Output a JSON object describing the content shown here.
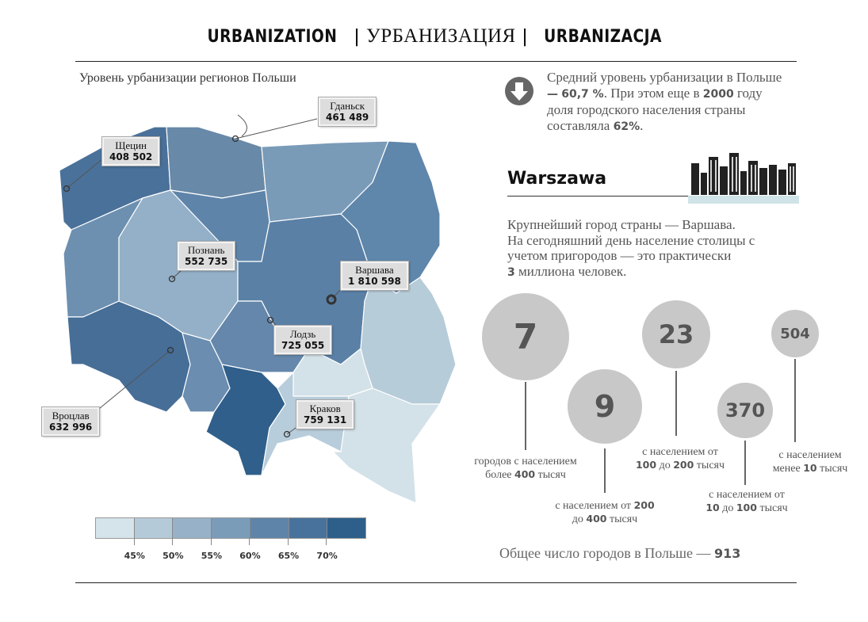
{
  "header": {
    "title_en": "URBANIZATION",
    "sep": "|",
    "title_ru": "УРБАНИЗАЦИЯ",
    "title_pl": "URBANIZACJA"
  },
  "map": {
    "subtitle": "Уровень урбанизации регионов Польши",
    "cities": [
      {
        "name": "Гданьск",
        "population": "461 489"
      },
      {
        "name": "Щецин",
        "population": "408 502"
      },
      {
        "name": "Познань",
        "population": "552 735"
      },
      {
        "name": "Варшава",
        "population": "1 810 598"
      },
      {
        "name": "Лодзь",
        "population": "725 055"
      },
      {
        "name": "Краков",
        "population": "759 131"
      },
      {
        "name": "Вроцлав",
        "population": "632 996"
      }
    ],
    "legend": {
      "colors": [
        "#d5e3ea",
        "#b5cad9",
        "#97b2c8",
        "#7b9cb9",
        "#5f84a9",
        "#48729b",
        "#2d5f8a"
      ],
      "ticks": [
        "45%",
        "50%",
        "55%",
        "60%",
        "65%",
        "70%"
      ]
    }
  },
  "info": {
    "icon": "down-arrow-circle-icon",
    "text_1": "Средний уровень урбанизации в Польше",
    "dash": "—",
    "value": "60,7 %",
    "text_2": ". При этом еще в",
    "year": "2000",
    "text_3": "году доля городского населения страны составляла",
    "share": "62%",
    "text_4": "."
  },
  "warsaw": {
    "heading": "Warszawa",
    "line1": "Крупнейший город страны — Варшава.",
    "line2": "На сегодняшний день население столицы с",
    "line3": "учетом пригородов — это практически",
    "num": "3",
    "line4": "миллиона человек."
  },
  "city_counts": [
    {
      "value": "7",
      "pre": "городов с населением",
      "pre2": "более",
      "b1": "400",
      "post": "тысяч"
    },
    {
      "value": "9",
      "pre": "с населением от",
      "b1": "200",
      "pre2": "до",
      "b2": "400",
      "post": "тысяч"
    },
    {
      "value": "23",
      "pre": "с населением от",
      "b1": "100",
      "mid": "до",
      "b2": "200",
      "post": "тысяч"
    },
    {
      "value": "370",
      "pre": "с населением от",
      "b1": "10",
      "mid": "до",
      "b2": "100",
      "post": "тысяч"
    },
    {
      "value": "504",
      "pre": "с населением",
      "pre2": "менее",
      "b1": "10",
      "post": "тысяч"
    }
  ],
  "total": {
    "label": "Общее число городов в Польше —",
    "value": "913"
  }
}
